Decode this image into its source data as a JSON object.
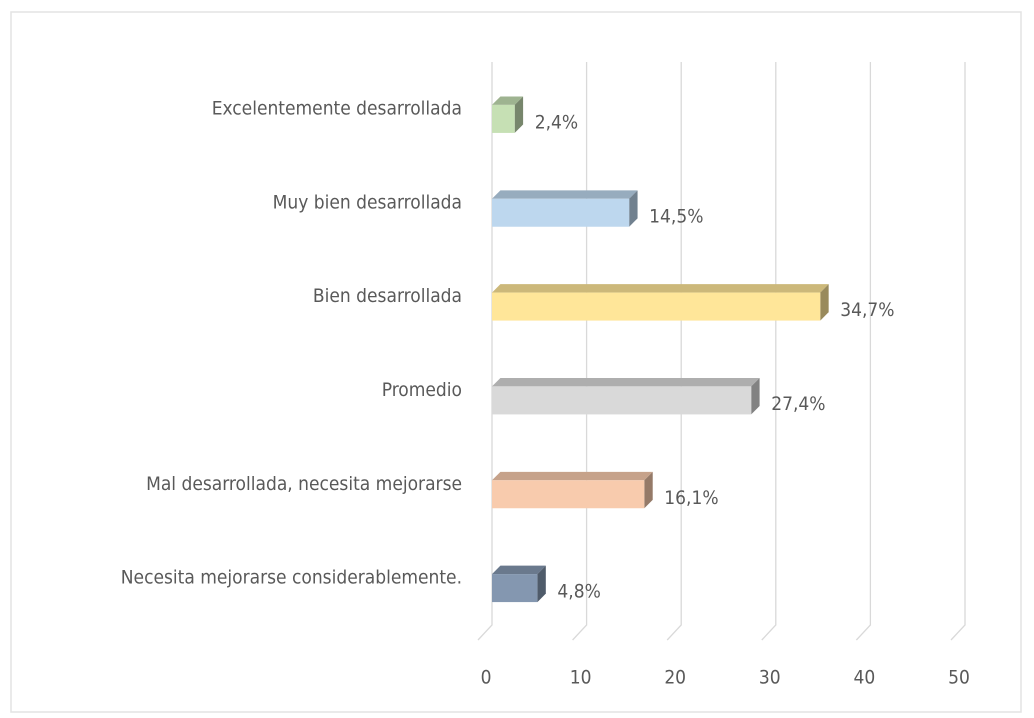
{
  "chart_data": {
    "type": "bar",
    "orientation": "horizontal",
    "categories": [
      "Excelentemente desarrollada",
      "Muy bien desarrollada",
      "Bien desarrollada",
      "Promedio",
      "Mal desarrollada, necesita mejorarse",
      "Necesita mejorarse considerablemente."
    ],
    "values": [
      2.4,
      14.5,
      34.7,
      27.4,
      16.1,
      4.8
    ],
    "value_labels": [
      "2,4%",
      "14,5%",
      "34,7%",
      "27,4%",
      "16,1%",
      "4,8%"
    ],
    "colors": [
      "#c6e0b4",
      "#bdd7ee",
      "#ffe699",
      "#d9d9d9",
      "#f8cbad",
      "#8497b0"
    ],
    "xlim": [
      0,
      50
    ],
    "xticks": [
      0,
      10,
      20,
      30,
      40,
      50
    ],
    "grid": true
  }
}
